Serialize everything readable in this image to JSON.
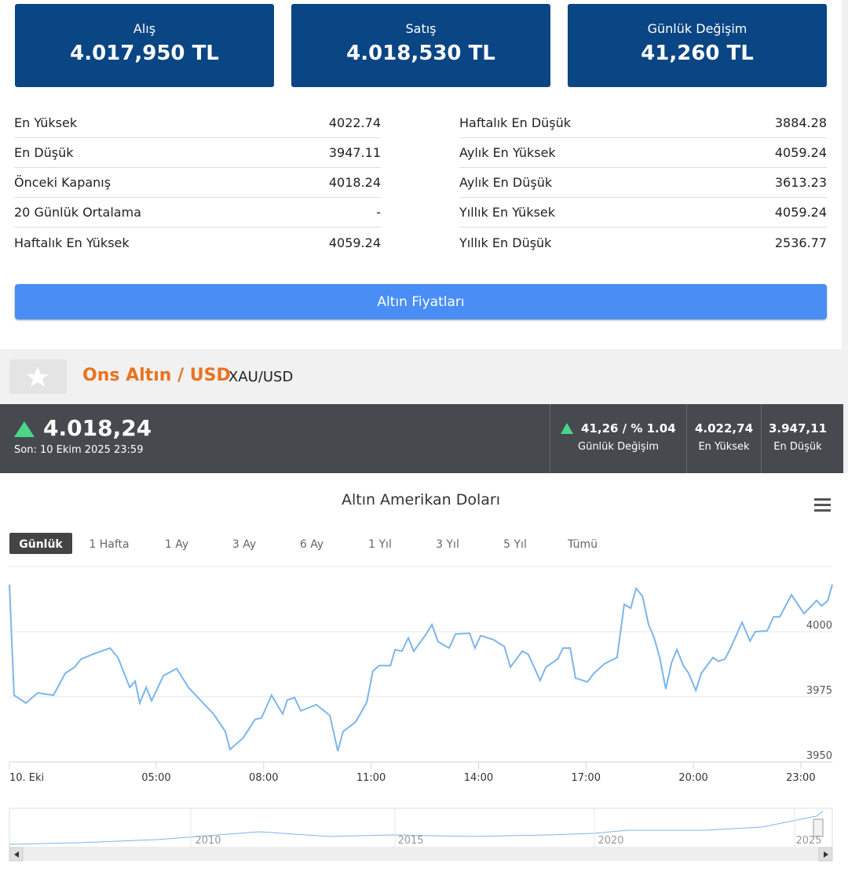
{
  "cards": [
    {
      "label": "Alış",
      "value": "4.017,950 TL"
    },
    {
      "label": "Satış",
      "value": "4.018,530 TL"
    },
    {
      "label": "Günlük Değişim",
      "value": "41,260 TL"
    }
  ],
  "stats": {
    "left": [
      [
        "En Yüksek",
        "4022.74"
      ],
      [
        "En Düşük",
        "3947.11"
      ],
      [
        "Önceki Kapanış",
        "4018.24"
      ],
      [
        "20 Günlük Ortalama",
        "-"
      ],
      [
        "Haftalık En Yüksek",
        "4059.24"
      ]
    ],
    "right": [
      [
        "Haftalık En Düşük",
        "3884.28"
      ],
      [
        "Aylık En Yüksek",
        "4059.24"
      ],
      [
        "Aylık En Düşük",
        "3613.23"
      ],
      [
        "Yıllık En Yüksek",
        "4059.24"
      ],
      [
        "Yıllık En Düşük",
        "2536.77"
      ]
    ]
  },
  "button": "Altın Fiyatları",
  "instrument": {
    "name": "Ons Altın / USD",
    "symbol": "XAU/USD"
  },
  "quote": {
    "price": "4.018,24",
    "time": "Son: 10 Ekim 2025 23:59",
    "change": "41,26 / % 1.04",
    "change_label": "Günlük Değişim",
    "high": "4.022,74",
    "high_label": "En Yüksek",
    "low": "3.947,11",
    "low_label": "En Düşük"
  },
  "chart_data": {
    "type": "line",
    "title": "Altın Amerikan Doları",
    "range_buttons": [
      "Günlük",
      "1 Hafta",
      "1 Ay",
      "3 Ay",
      "6 Ay",
      "1 Yıl",
      "3 Yıl",
      "5 Yıl",
      "Tümü"
    ],
    "color": "#7cb5ec",
    "x": [
      0.9,
      1.03,
      1.36,
      1.69,
      2.13,
      2.46,
      2.72,
      2.9,
      3.22,
      3.71,
      3.93,
      4.26,
      4.41,
      4.54,
      4.72,
      4.87,
      5.2,
      5.57,
      5.9,
      6.29,
      6.6,
      6.93,
      7.06,
      7.43,
      7.76,
      7.94,
      8.22,
      8.53,
      8.66,
      8.86,
      9.04,
      9.47,
      9.85,
      10.07,
      10.22,
      10.57,
      10.88,
      11.05,
      11.23,
      11.54,
      11.67,
      11.86,
      12.04,
      12.19,
      12.54,
      12.7,
      12.87,
      13.18,
      13.36,
      13.75,
      13.9,
      14.06,
      14.41,
      14.72,
      14.89,
      15.22,
      15.39,
      15.72,
      15.88,
      16.21,
      16.36,
      16.56,
      16.71,
      17.04,
      17.22,
      17.52,
      17.87,
      18.07,
      18.25,
      18.4,
      18.58,
      18.75,
      18.9,
      19.06,
      19.23,
      19.39,
      19.54,
      19.72,
      19.87,
      20.07,
      20.22,
      20.55,
      20.7,
      20.88,
      21.03,
      21.36,
      21.58,
      21.73,
      22.06,
      22.24,
      22.41,
      22.74,
      23.09,
      23.44,
      23.58,
      23.75,
      23.88
    ],
    "values": [
      4018.1,
      3975.6,
      3972.6,
      3976.5,
      3975.6,
      3984,
      3986.4,
      3989.5,
      3991.3,
      3993.7,
      3990.1,
      3978.6,
      3981,
      3972.6,
      3978.6,
      3973.5,
      3983.1,
      3985.8,
      3978.6,
      3972.9,
      3968.4,
      3961.7,
      3954.8,
      3959.3,
      3966.3,
      3966.9,
      3975.6,
      3968.4,
      3973.8,
      3974.7,
      3969.6,
      3972,
      3967.8,
      3954.2,
      3961.7,
      3965.4,
      3972.9,
      3984.9,
      3987,
      3987,
      3993.1,
      3992.5,
      3997.6,
      3992.5,
      3999.1,
      4002.7,
      3996.1,
      3993.7,
      3999.1,
      3999.4,
      3993.7,
      3998.5,
      3997,
      3994.3,
      3986.4,
      3992.5,
      3991.3,
      3981.3,
      3986.4,
      3989.5,
      3993.7,
      3993.7,
      3982.2,
      3980.7,
      3984,
      3987.7,
      3990.1,
      4010.5,
      4009,
      4016.6,
      4013.6,
      4002.7,
      3997.9,
      3990.1,
      3978,
      3988,
      3993.1,
      3987,
      3984,
      3977.4,
      3984,
      3990.1,
      3988.6,
      3989.5,
      3993.4,
      4003.6,
      3996.4,
      4000,
      4000.3,
      4005.7,
      4005.7,
      4014.2,
      4006.9,
      4012,
      4009.9,
      4011.8,
      4018.1
    ],
    "xlim": [
      0.9,
      23.88
    ],
    "xticks": [
      {
        "value": 0.9,
        "label": "10. Eki"
      },
      {
        "value": 5,
        "label": "05:00"
      },
      {
        "value": 8,
        "label": "08:00"
      },
      {
        "value": 11,
        "label": "11:00"
      },
      {
        "value": 14,
        "label": "14:00"
      },
      {
        "value": 17,
        "label": "17:00"
      },
      {
        "value": 20,
        "label": "20:00"
      },
      {
        "value": 23,
        "label": "23:00"
      }
    ],
    "ylim": [
      3950,
      4025
    ],
    "yticks": [
      3950,
      3975,
      4000
    ],
    "grid": true,
    "navigator_labels": [
      "2010",
      "2015",
      "2020",
      "2025"
    ]
  }
}
